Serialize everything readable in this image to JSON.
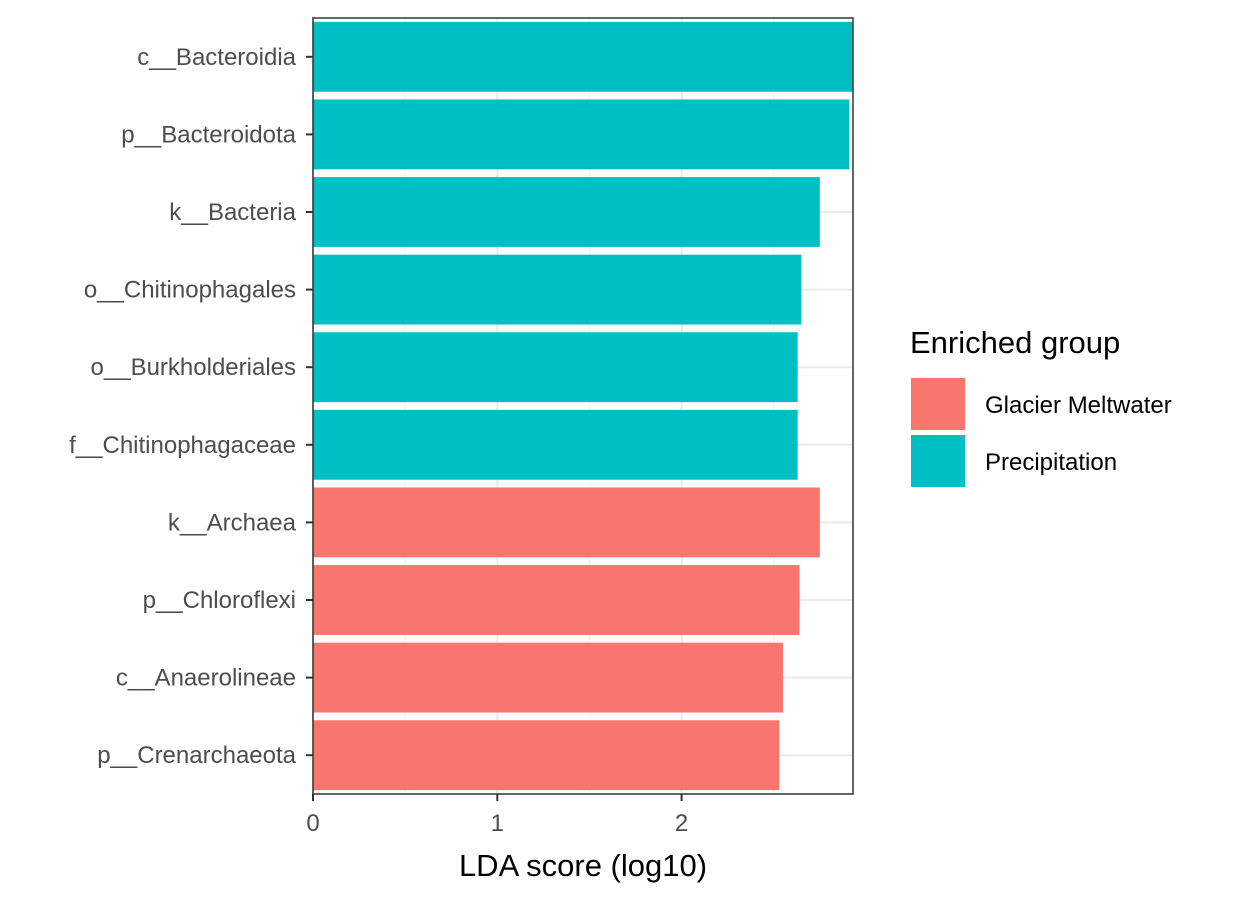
{
  "chart_data": {
    "type": "bar",
    "orientation": "horizontal",
    "title": "",
    "xlabel": "LDA score (log10)",
    "ylabel": "",
    "xlim": [
      0,
      2.93
    ],
    "x_ticks": [
      0,
      1,
      2
    ],
    "grid": true,
    "legend": {
      "title": "Enriched group",
      "position": "right",
      "entries": [
        {
          "name": "Glacier Meltwater",
          "color": "#F8766D"
        },
        {
          "name": "Precipitation",
          "color": "#00BFC4"
        }
      ]
    },
    "categories": [
      "c__Bacteroidia",
      "p__Bacteroidota",
      "k__Bacteria",
      "o__Chitinophagales",
      "o__Burkholderiales",
      "f__Chitinophagaceae",
      "k__Archaea",
      "p__Chloroflexi",
      "c__Anaerolineae",
      "p__Crenarchaeota"
    ],
    "values": [
      2.93,
      2.91,
      2.75,
      2.65,
      2.63,
      2.63,
      2.75,
      2.64,
      2.55,
      2.53
    ],
    "groups": [
      "Precipitation",
      "Precipitation",
      "Precipitation",
      "Precipitation",
      "Precipitation",
      "Precipitation",
      "Glacier Meltwater",
      "Glacier Meltwater",
      "Glacier Meltwater",
      "Glacier Meltwater"
    ]
  }
}
